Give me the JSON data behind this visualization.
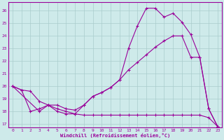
{
  "xlabel": "Windchill (Refroidissement éolien,°C)",
  "xlim": [
    -0.5,
    23.5
  ],
  "ylim": [
    16.7,
    26.7
  ],
  "yticks": [
    17,
    18,
    19,
    20,
    21,
    22,
    23,
    24,
    25,
    26
  ],
  "xticks": [
    0,
    1,
    2,
    3,
    4,
    5,
    6,
    7,
    8,
    9,
    10,
    11,
    12,
    13,
    14,
    15,
    16,
    17,
    18,
    19,
    20,
    21,
    22,
    23
  ],
  "background_color": "#ceeaea",
  "line_color": "#990099",
  "grid_color": "#aacccc",
  "line1_x": [
    0,
    1,
    2,
    3,
    4,
    5,
    6,
    7,
    8,
    9,
    10,
    11,
    12,
    13,
    14,
    15,
    16,
    17,
    18,
    19,
    20,
    21,
    22,
    23
  ],
  "line1_y": [
    20.0,
    19.7,
    19.6,
    18.8,
    18.5,
    18.5,
    18.2,
    18.1,
    18.5,
    19.2,
    19.5,
    19.9,
    20.5,
    21.3,
    21.9,
    22.5,
    23.1,
    23.6,
    24.0,
    24.0,
    22.3,
    22.3,
    18.2,
    16.8
  ],
  "line2_x": [
    0,
    1,
    2,
    3,
    4,
    5,
    6,
    7,
    8,
    9,
    10,
    11,
    12,
    13,
    14,
    15,
    16,
    17,
    18,
    19,
    20,
    21,
    22,
    23
  ],
  "line2_y": [
    20.0,
    19.7,
    18.0,
    18.2,
    18.5,
    18.0,
    17.8,
    17.8,
    17.7,
    17.7,
    17.7,
    17.7,
    17.7,
    17.7,
    17.7,
    17.7,
    17.7,
    17.7,
    17.7,
    17.7,
    17.7,
    17.7,
    17.5,
    16.8
  ],
  "line3_x": [
    0,
    3,
    4,
    5,
    6,
    7,
    8,
    9,
    10,
    11,
    12,
    13,
    14,
    15,
    16,
    17,
    18,
    19,
    20,
    21,
    22,
    23
  ],
  "line3_y": [
    20.0,
    18.0,
    18.5,
    18.2,
    18.0,
    17.8,
    18.5,
    19.2,
    19.5,
    19.9,
    20.5,
    23.0,
    24.8,
    26.2,
    26.2,
    25.5,
    25.8,
    25.1,
    24.1,
    22.3,
    18.2,
    16.8
  ]
}
